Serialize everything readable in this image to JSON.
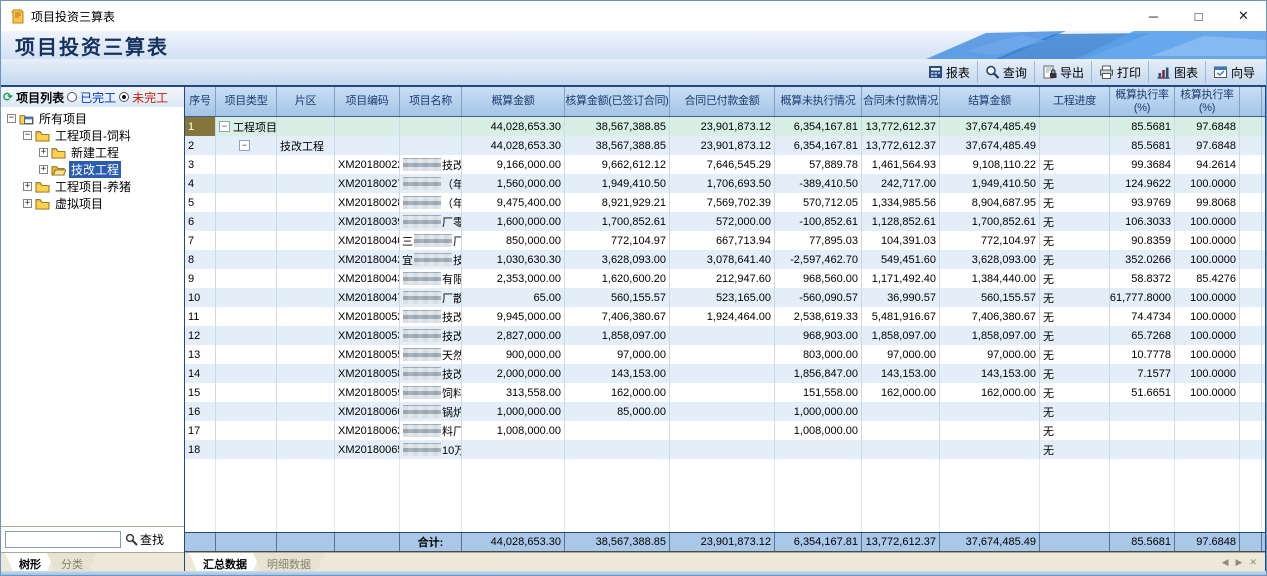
{
  "window": {
    "title": "项目投资三算表",
    "controls": {
      "minimize": "─",
      "maximize": "□",
      "close": "✕"
    }
  },
  "banner": {
    "title": "项目投资三算表"
  },
  "toolbar": {
    "buttons": [
      {
        "id": "report",
        "label": "报表"
      },
      {
        "id": "query",
        "label": "查询"
      },
      {
        "id": "export",
        "label": "导出"
      },
      {
        "id": "print",
        "label": "打印"
      },
      {
        "id": "chart",
        "label": "图表"
      },
      {
        "id": "wizard",
        "label": "向导"
      }
    ]
  },
  "sidebar": {
    "header": {
      "label": "项目列表",
      "radios": [
        {
          "label": "已完工",
          "checked": false
        },
        {
          "label": "未完工",
          "checked": true
        }
      ]
    },
    "tree": [
      {
        "label": "所有项目",
        "level": 0,
        "expander": "-",
        "icon": "folder-root",
        "selected": false
      },
      {
        "label": "工程项目-饲料",
        "level": 1,
        "expander": "-",
        "icon": "folder",
        "selected": false
      },
      {
        "label": "新建工程",
        "level": 2,
        "expander": "+",
        "icon": "folder",
        "selected": false
      },
      {
        "label": "技改工程",
        "level": 2,
        "expander": "+",
        "icon": "folder-open",
        "selected": true
      },
      {
        "label": "工程项目-养猪",
        "level": 1,
        "expander": "+",
        "icon": "folder",
        "selected": false
      },
      {
        "label": "虚拟项目",
        "level": 1,
        "expander": "+",
        "icon": "folder",
        "selected": false
      }
    ],
    "search": {
      "value": "",
      "button": "查找"
    },
    "tabs": [
      {
        "label": "树形",
        "active": true
      },
      {
        "label": "分类",
        "active": false
      }
    ]
  },
  "table": {
    "columns": [
      "序号",
      "项目类型",
      "片区",
      "项目编码",
      "项目名称",
      "概算金额",
      "核算金额(已签订合同)",
      "合同已付款金额",
      "概算未执行情况",
      "合同未付款情况",
      "结算金额",
      "工程进度",
      "概算执行率\n(%)",
      "核算执行率\n(%)",
      ""
    ],
    "rows": [
      {
        "no": "1",
        "group": 1,
        "type": "工程项目",
        "area": "",
        "code": "",
        "name": {
          "pre": "",
          "suf": "",
          "mosaic": false
        },
        "style": "summary",
        "vals": [
          "44,028,653.30",
          "38,567,388.85",
          "23,901,873.12",
          "6,354,167.81",
          "13,772,612.37",
          "37,674,485.49",
          "",
          "85.5681",
          "97.6848"
        ]
      },
      {
        "no": "2",
        "group": 2,
        "type": "",
        "area": "技改工程",
        "code": "",
        "name": {
          "pre": "",
          "suf": "",
          "mosaic": false
        },
        "style": "",
        "vals": [
          "44,028,653.30",
          "38,567,388.85",
          "23,901,873.12",
          "6,354,167.81",
          "13,772,612.37",
          "37,674,485.49",
          "",
          "85.5681",
          "97.6848"
        ]
      },
      {
        "no": "3",
        "group": 0,
        "type": "",
        "area": "",
        "code": "XM20180022",
        "name": {
          "pre": "",
          "suf": "技改",
          "mosaic": true
        },
        "style": "",
        "vals": [
          "9,166,000.00",
          "9,662,612.12",
          "7,646,545.29",
          "57,889.78",
          "1,461,564.93",
          "9,108,110.22",
          "无",
          "99.3684",
          "94.2614"
        ]
      },
      {
        "no": "4",
        "group": 0,
        "type": "",
        "area": "",
        "code": "XM20180027",
        "name": {
          "pre": "",
          "suf": "（年",
          "mosaic": true
        },
        "style": "",
        "vals": [
          "1,560,000.00",
          "1,949,410.50",
          "1,706,693.50",
          "-389,410.50",
          "242,717.00",
          "1,949,410.50",
          "无",
          "124.9622",
          "100.0000"
        ]
      },
      {
        "no": "5",
        "group": 0,
        "type": "",
        "area": "",
        "code": "XM20180028",
        "name": {
          "pre": "",
          "suf": "（年",
          "mosaic": true
        },
        "style": "",
        "vals": [
          "9,475,400.00",
          "8,921,929.21",
          "7,569,702.39",
          "570,712.05",
          "1,334,985.56",
          "8,904,687.95",
          "无",
          "93.9769",
          "99.8068"
        ]
      },
      {
        "no": "6",
        "group": 0,
        "type": "",
        "area": "",
        "code": "XM20180039",
        "name": {
          "pre": "",
          "suf": "厂零",
          "mosaic": true
        },
        "style": "",
        "vals": [
          "1,600,000.00",
          "1,700,852.61",
          "572,000.00",
          "-100,852.61",
          "1,128,852.61",
          "1,700,852.61",
          "无",
          "106.3033",
          "100.0000"
        ]
      },
      {
        "no": "7",
        "group": 0,
        "type": "",
        "area": "",
        "code": "XM20180040",
        "name": {
          "pre": "三",
          "suf": "厂散",
          "mosaic": true
        },
        "style": "",
        "vals": [
          "850,000.00",
          "772,104.97",
          "667,713.94",
          "77,895.03",
          "104,391.03",
          "772,104.97",
          "无",
          "90.8359",
          "100.0000"
        ]
      },
      {
        "no": "8",
        "group": 0,
        "type": "",
        "area": "",
        "code": "XM20180042",
        "name": {
          "pre": "宜",
          "suf": "技改",
          "mosaic": true
        },
        "style": "",
        "vals": [
          "1,030,630.30",
          "3,628,093.00",
          "3,078,641.40",
          "-2,597,462.70",
          "549,451.60",
          "3,628,093.00",
          "无",
          "352.0266",
          "100.0000"
        ]
      },
      {
        "no": "9",
        "group": 0,
        "type": "",
        "area": "",
        "code": "XM20180043",
        "name": {
          "pre": "",
          "suf": "有限",
          "mosaic": true
        },
        "style": "",
        "vals": [
          "2,353,000.00",
          "1,620,600.20",
          "212,947.60",
          "968,560.00",
          "1,171,492.40",
          "1,384,440.00",
          "无",
          "58.8372",
          "85.4276"
        ]
      },
      {
        "no": "10",
        "group": 0,
        "type": "",
        "area": "",
        "code": "XM20180047",
        "name": {
          "pre": "",
          "suf": "厂散",
          "mosaic": true
        },
        "style": "",
        "vals": [
          "65.00",
          "560,155.57",
          "523,165.00",
          "-560,090.57",
          "36,990.57",
          "560,155.57",
          "无",
          "61,777.8000",
          "100.0000"
        ]
      },
      {
        "no": "11",
        "group": 0,
        "type": "",
        "area": "",
        "code": "XM20180052",
        "name": {
          "pre": "",
          "suf": "技改",
          "mosaic": true
        },
        "style": "",
        "vals": [
          "9,945,000.00",
          "7,406,380.67",
          "1,924,464.00",
          "2,538,619.33",
          "5,481,916.67",
          "7,406,380.67",
          "无",
          "74.4734",
          "100.0000"
        ]
      },
      {
        "no": "12",
        "group": 0,
        "type": "",
        "area": "",
        "code": "XM20180053",
        "name": {
          "pre": "",
          "suf": "技改",
          "mosaic": true
        },
        "style": "",
        "vals": [
          "2,827,000.00",
          "1,858,097.00",
          "",
          "968,903.00",
          "1,858,097.00",
          "1,858,097.00",
          "无",
          "65.7268",
          "100.0000"
        ]
      },
      {
        "no": "13",
        "group": 0,
        "type": "",
        "area": "",
        "code": "XM20180055",
        "name": {
          "pre": "",
          "suf": "天然",
          "mosaic": true
        },
        "style": "",
        "vals": [
          "900,000.00",
          "97,000.00",
          "",
          "803,000.00",
          "97,000.00",
          "97,000.00",
          "无",
          "10.7778",
          "100.0000"
        ]
      },
      {
        "no": "14",
        "group": 0,
        "type": "",
        "area": "",
        "code": "XM20180058",
        "name": {
          "pre": "",
          "suf": "技改",
          "mosaic": true
        },
        "style": "",
        "vals": [
          "2,000,000.00",
          "143,153.00",
          "",
          "1,856,847.00",
          "143,153.00",
          "143,153.00",
          "无",
          "7.1577",
          "100.0000"
        ]
      },
      {
        "no": "15",
        "group": 0,
        "type": "",
        "area": "",
        "code": "XM20180059",
        "name": {
          "pre": "",
          "suf": "饲料",
          "mosaic": true
        },
        "style": "",
        "vals": [
          "313,558.00",
          "162,000.00",
          "",
          "151,558.00",
          "162,000.00",
          "162,000.00",
          "无",
          "51.6651",
          "100.0000"
        ]
      },
      {
        "no": "16",
        "group": 0,
        "type": "",
        "area": "",
        "code": "XM20180060",
        "name": {
          "pre": "",
          "suf": "锅炉",
          "mosaic": true
        },
        "style": "",
        "vals": [
          "1,000,000.00",
          "85,000.00",
          "",
          "1,000,000.00",
          "",
          "",
          "无",
          "",
          ""
        ]
      },
      {
        "no": "17",
        "group": 0,
        "type": "",
        "area": "",
        "code": "XM20180062",
        "name": {
          "pre": "",
          "suf": "料厂",
          "mosaic": true
        },
        "style": "",
        "vals": [
          "1,008,000.00",
          "",
          "",
          "1,008,000.00",
          "",
          "",
          "无",
          "",
          ""
        ]
      },
      {
        "no": "18",
        "group": 0,
        "type": "",
        "area": "",
        "code": "XM20180065",
        "name": {
          "pre": "",
          "suf": "10万",
          "mosaic": true
        },
        "style": "",
        "vals": [
          "",
          "",
          "",
          "",
          "",
          "",
          "无",
          "",
          ""
        ]
      }
    ],
    "total": {
      "label": "合计:",
      "vals": [
        "44,028,653.30",
        "38,567,388.85",
        "23,901,873.12",
        "6,354,167.81",
        "13,772,612.37",
        "37,674,485.49",
        "",
        "85.5681",
        "97.6848"
      ]
    },
    "tabs": [
      {
        "label": "汇总数据",
        "active": true
      },
      {
        "label": "明细数据",
        "active": false
      }
    ],
    "tab_nav": {
      "prev": "◀",
      "next": "▶",
      "close": "✕"
    }
  },
  "colors": {
    "completed_radio_label": "#0033CC",
    "uncompleted_radio_label": "#C22000",
    "summary_row_bg": "#D8EFE5",
    "selected_tree_item_bg": "#2A5DB0",
    "selected_row_number_bg": "#86753B",
    "total_row_bg": "#A9C8E8",
    "header_text": "#1C3B70"
  }
}
